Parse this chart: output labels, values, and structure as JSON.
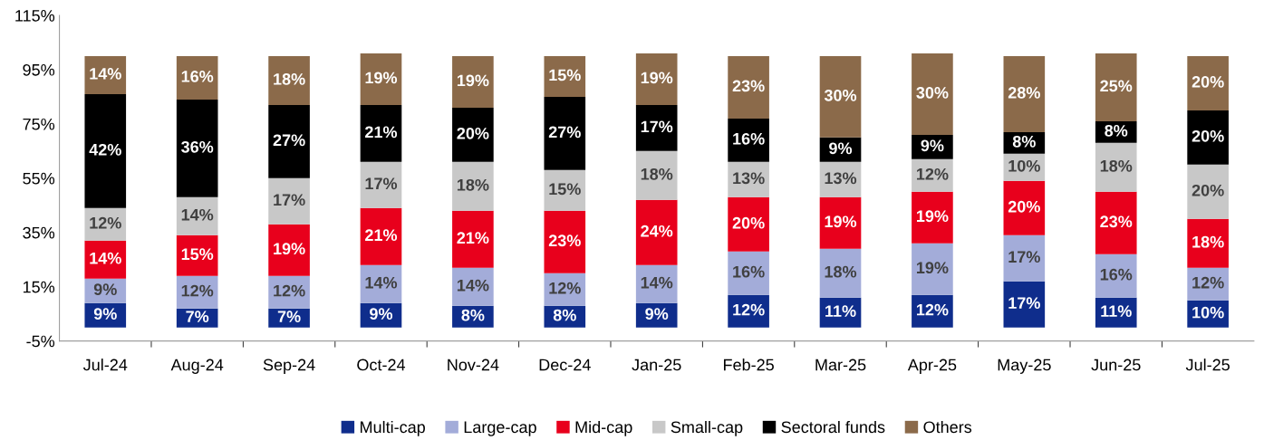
{
  "chart_data": {
    "type": "bar",
    "stacked": true,
    "grid": false,
    "legend": "bottom",
    "categories": [
      "Jul-24",
      "Aug-24",
      "Sep-24",
      "Oct-24",
      "Nov-24",
      "Dec-24",
      "Jan-25",
      "Feb-25",
      "Mar-25",
      "Apr-25",
      "May-25",
      "Jun-25",
      "Jul-25"
    ],
    "ylim": [
      -5,
      115
    ],
    "yticks": [
      {
        "value": -5,
        "label": "-5%"
      },
      {
        "value": 15,
        "label": "15%"
      },
      {
        "value": 35,
        "label": "35%"
      },
      {
        "value": 55,
        "label": "55%"
      },
      {
        "value": 75,
        "label": "75%"
      },
      {
        "value": 95,
        "label": "95%"
      },
      {
        "value": 115,
        "label": "115%"
      }
    ],
    "series": [
      {
        "name": "Multi-cap",
        "color": "#0f2d8c",
        "values": [
          9,
          7,
          7,
          9,
          8,
          8,
          9,
          12,
          11,
          12,
          17,
          11,
          10
        ],
        "value_labels": [
          "9%",
          "7%",
          "7%",
          "9%",
          "8%",
          "8%",
          "9%",
          "12%",
          "11%",
          "12%",
          "17%",
          "11%",
          "10%"
        ]
      },
      {
        "name": "Large-cap",
        "color": "#a3acd9",
        "values": [
          9,
          12,
          12,
          14,
          14,
          12,
          14,
          16,
          18,
          19,
          17,
          16,
          12
        ],
        "value_labels": [
          "9%",
          "12%",
          "12%",
          "14%",
          "14%",
          "12%",
          "14%",
          "16%",
          "18%",
          "19%",
          "17%",
          "16%",
          "12%"
        ]
      },
      {
        "name": "Mid-cap",
        "color": "#e8001c",
        "values": [
          14,
          15,
          19,
          21,
          21,
          23,
          24,
          20,
          19,
          19,
          20,
          23,
          18
        ],
        "value_labels": [
          "14%",
          "15%",
          "19%",
          "21%",
          "21%",
          "23%",
          "24%",
          "20%",
          "19%",
          "19%",
          "20%",
          "23%",
          "18%"
        ]
      },
      {
        "name": "Small-cap",
        "color": "#c8c8c8",
        "values": [
          12,
          14,
          17,
          17,
          18,
          15,
          18,
          13,
          13,
          12,
          10,
          18,
          20
        ],
        "value_labels": [
          "12%",
          "14%",
          "17%",
          "17%",
          "18%",
          "15%",
          "18%",
          "13%",
          "13%",
          "12%",
          "10%",
          "18%",
          "20%"
        ]
      },
      {
        "name": "Sectoral funds",
        "color": "#000000",
        "values": [
          42,
          36,
          27,
          21,
          20,
          27,
          17,
          16,
          9,
          9,
          8,
          8,
          20
        ],
        "value_labels": [
          "42%",
          "36%",
          "27%",
          "21%",
          "20%",
          "27%",
          "17%",
          "16%",
          "9%",
          "9%",
          "8%",
          "8%",
          "20%"
        ]
      },
      {
        "name": "Others",
        "color": "#8b6a4a",
        "values": [
          14,
          16,
          18,
          19,
          19,
          15,
          19,
          23,
          30,
          30,
          28,
          25,
          20
        ],
        "value_labels": [
          "14%",
          "16%",
          "18%",
          "19%",
          "19%",
          "15%",
          "19%",
          "23%",
          "30%",
          "30%",
          "28%",
          "25%",
          "20%"
        ]
      }
    ]
  }
}
